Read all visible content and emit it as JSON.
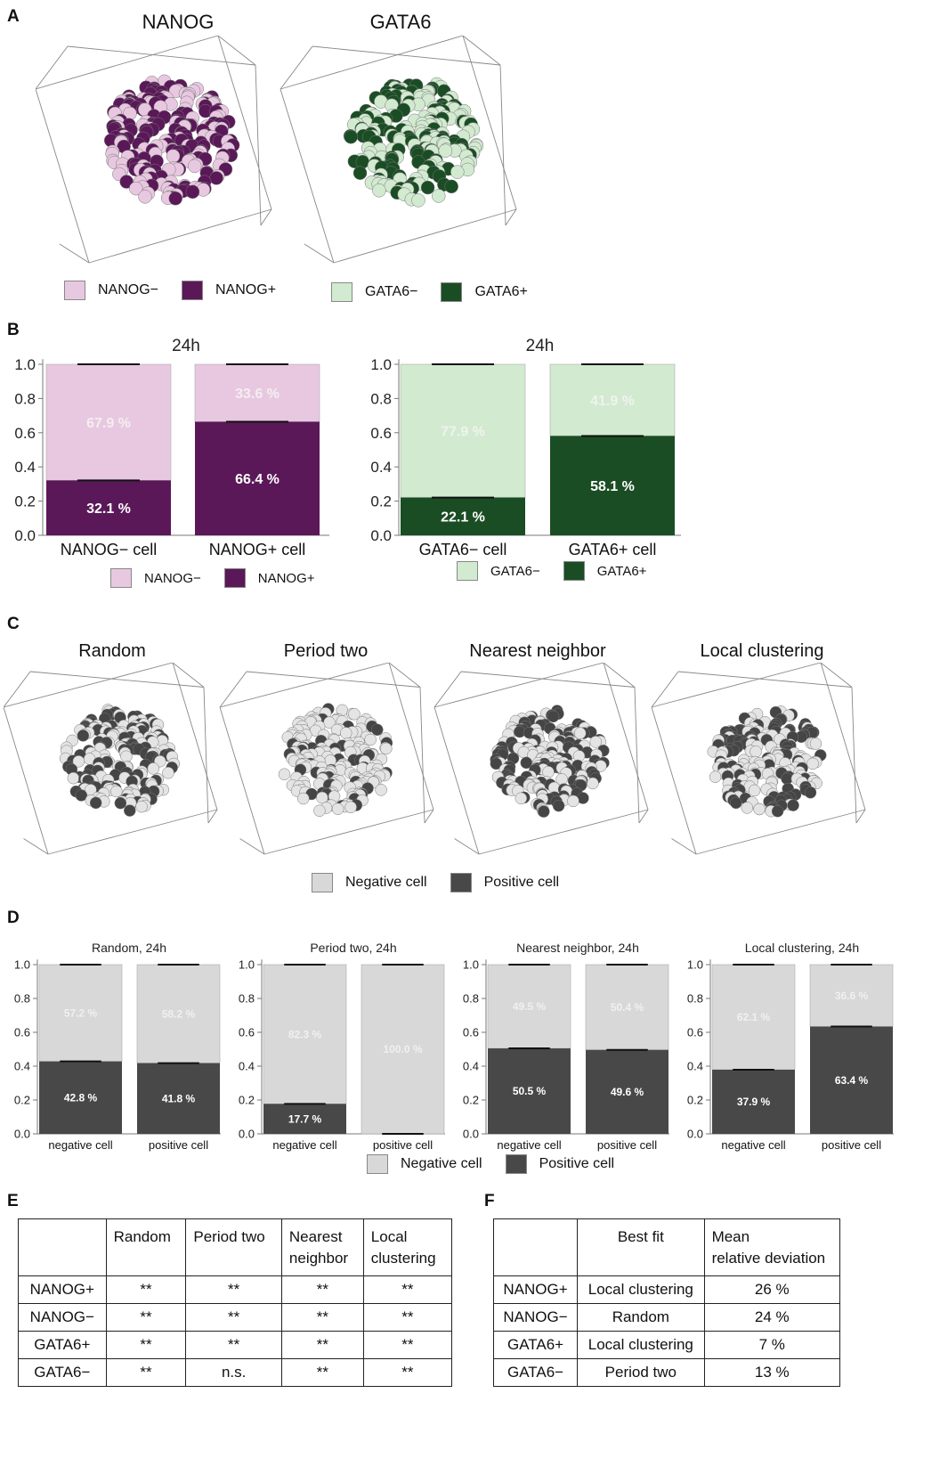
{
  "panelA": {
    "letter": "A",
    "nanog_title": "NANOG",
    "gata6_title": "GATA6",
    "legend_nanog": [
      "NANOG−",
      "NANOG+"
    ],
    "legend_gata6": [
      "GATA6−",
      "GATA6+"
    ]
  },
  "panelB": {
    "letter": "B"
  },
  "panelC": {
    "letter": "C",
    "titles": [
      "Random",
      "Period two",
      "Nearest neighbor",
      "Local clustering"
    ],
    "legend": [
      "Negative cell",
      "Positive cell"
    ]
  },
  "panelD": {
    "letter": "D",
    "legend": [
      "Negative cell",
      "Positive cell"
    ]
  },
  "colors": {
    "nanog_neg": "#e8c8e0",
    "nanog_pos": "#5a1858",
    "gata6_neg": "#d2ead0",
    "gata6_pos": "#1a4d24",
    "gen_neg": "#d8d8d8",
    "gen_pos": "#484848"
  },
  "chart_data": [
    {
      "type": "bar",
      "stacked": true,
      "title": "24h",
      "categories": [
        "NANOG− cell",
        "NANOG+ cell"
      ],
      "ylim": [
        0,
        1.0
      ],
      "yticks": [
        "0.0",
        "0.2",
        "0.4",
        "0.6",
        "0.8",
        "1.0"
      ],
      "series": [
        {
          "name": "NANOG+",
          "values": [
            0.321,
            0.664
          ],
          "labels": [
            "32.1 %",
            "66.4 %"
          ]
        },
        {
          "name": "NANOG−",
          "values": [
            0.679,
            0.336
          ],
          "labels": [
            "67.9 %",
            "33.6 %"
          ]
        }
      ],
      "legend": [
        "NANOG−",
        "NANOG+"
      ]
    },
    {
      "type": "bar",
      "stacked": true,
      "title": "24h",
      "categories": [
        "GATA6− cell",
        "GATA6+ cell"
      ],
      "ylim": [
        0,
        1.0
      ],
      "yticks": [
        "0.0",
        "0.2",
        "0.4",
        "0.6",
        "0.8",
        "1.0"
      ],
      "series": [
        {
          "name": "GATA6+",
          "values": [
            0.221,
            0.581
          ],
          "labels": [
            "22.1 %",
            "58.1 %"
          ]
        },
        {
          "name": "GATA6−",
          "values": [
            0.779,
            0.419
          ],
          "labels": [
            "77.9 %",
            "41.9 %"
          ]
        }
      ],
      "legend": [
        "GATA6−",
        "GATA6+"
      ]
    },
    {
      "type": "bar",
      "stacked": true,
      "title": "Random, 24h",
      "categories": [
        "negative cell",
        "positive cell"
      ],
      "ylim": [
        0,
        1.0
      ],
      "yticks": [
        "0.0",
        "0.2",
        "0.4",
        "0.6",
        "0.8",
        "1.0"
      ],
      "series": [
        {
          "name": "Positive cell",
          "values": [
            0.428,
            0.418
          ],
          "labels": [
            "42.8 %",
            "41.8 %"
          ]
        },
        {
          "name": "Negative cell",
          "values": [
            0.572,
            0.582
          ],
          "labels": [
            "57.2 %",
            "58.2 %"
          ]
        }
      ]
    },
    {
      "type": "bar",
      "stacked": true,
      "title": "Period two, 24h",
      "categories": [
        "negative cell",
        "positive cell"
      ],
      "ylim": [
        0,
        1.0
      ],
      "yticks": [
        "0.0",
        "0.2",
        "0.4",
        "0.6",
        "0.8",
        "1.0"
      ],
      "series": [
        {
          "name": "Positive cell",
          "values": [
            0.177,
            0.0
          ],
          "labels": [
            "17.7 %",
            ""
          ]
        },
        {
          "name": "Negative cell",
          "values": [
            0.823,
            1.0
          ],
          "labels": [
            "82.3 %",
            "100.0 %"
          ]
        }
      ]
    },
    {
      "type": "bar",
      "stacked": true,
      "title": "Nearest neighbor, 24h",
      "categories": [
        "negative cell",
        "positive cell"
      ],
      "ylim": [
        0,
        1.0
      ],
      "yticks": [
        "0.0",
        "0.2",
        "0.4",
        "0.6",
        "0.8",
        "1.0"
      ],
      "series": [
        {
          "name": "Positive cell",
          "values": [
            0.505,
            0.496
          ],
          "labels": [
            "50.5 %",
            "49.6 %"
          ]
        },
        {
          "name": "Negative cell",
          "values": [
            0.495,
            0.504
          ],
          "labels": [
            "49.5 %",
            "50.4 %"
          ]
        }
      ]
    },
    {
      "type": "bar",
      "stacked": true,
      "title": "Local clustering, 24h",
      "categories": [
        "negative cell",
        "positive cell"
      ],
      "ylim": [
        0,
        1.0
      ],
      "yticks": [
        "0.0",
        "0.2",
        "0.4",
        "0.6",
        "0.8",
        "1.0"
      ],
      "series": [
        {
          "name": "Positive cell",
          "values": [
            0.379,
            0.634
          ],
          "labels": [
            "37.9 %",
            "63.4 %"
          ]
        },
        {
          "name": "Negative cell",
          "values": [
            0.621,
            0.366
          ],
          "labels": [
            "62.1 %",
            "36.6 %"
          ]
        }
      ]
    }
  ],
  "tableE": {
    "letter": "E",
    "headers": [
      "",
      "Random",
      "Period two",
      "Nearest\nneighbor",
      "Local\nclustering"
    ],
    "rows": [
      [
        "NANOG+",
        "**",
        "**",
        "**",
        "**"
      ],
      [
        "NANOG−",
        "**",
        "**",
        "**",
        "**"
      ],
      [
        "GATA6+",
        "**",
        "**",
        "**",
        "**"
      ],
      [
        "GATA6−",
        "**",
        "n.s.",
        "**",
        "**"
      ]
    ]
  },
  "tableF": {
    "letter": "F",
    "headers": [
      "",
      "Best fit",
      "Mean\nrelative deviation"
    ],
    "rows": [
      [
        "NANOG+",
        "Local clustering",
        "26 %"
      ],
      [
        "NANOG−",
        "Random",
        "24 %"
      ],
      [
        "GATA6+",
        "Local clustering",
        "7 %"
      ],
      [
        "GATA6−",
        "Period two",
        "13 %"
      ]
    ]
  }
}
